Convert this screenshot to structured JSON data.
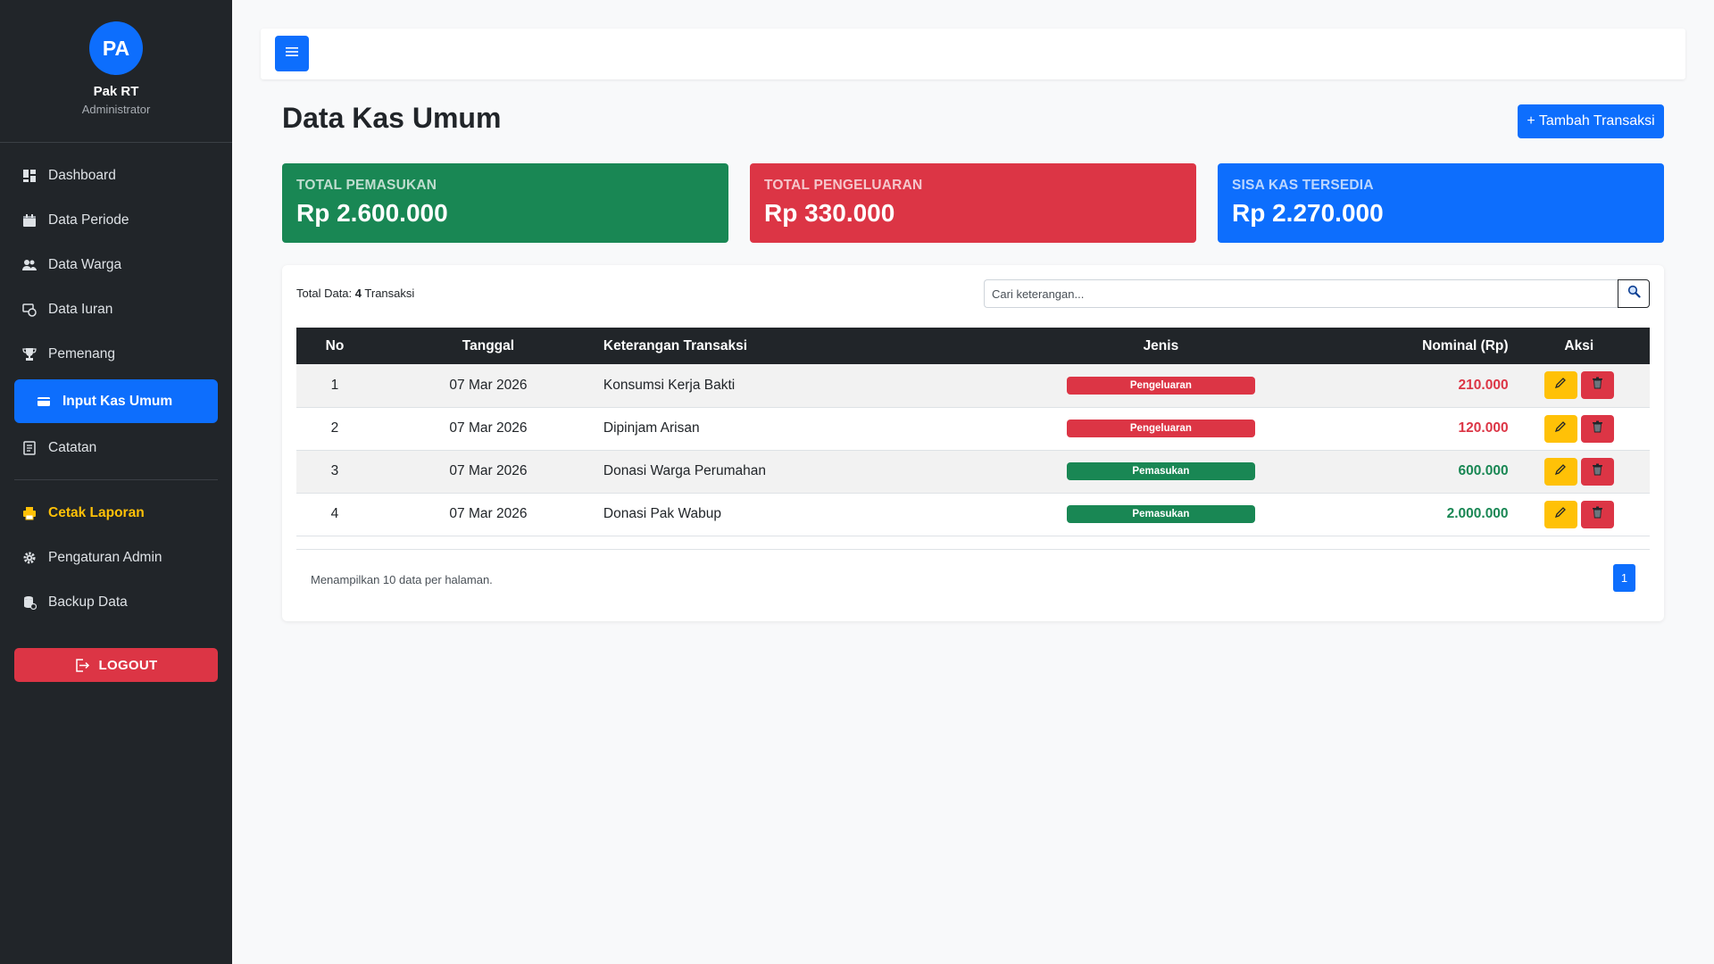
{
  "profile": {
    "initials": "PA",
    "name": "Pak RT",
    "role": "Administrator"
  },
  "nav": {
    "items": [
      {
        "label": "Dashboard",
        "icon": "dashboard-icon"
      },
      {
        "label": "Data Periode",
        "icon": "calendar-icon"
      },
      {
        "label": "Data Warga",
        "icon": "people-icon"
      },
      {
        "label": "Data Iuran",
        "icon": "cash-coin-icon"
      },
      {
        "label": "Pemenang",
        "icon": "trophy-icon"
      },
      {
        "label": "Input Kas Umum",
        "icon": "wallet-icon",
        "active": true
      },
      {
        "label": "Catatan",
        "icon": "notes-icon"
      }
    ],
    "secondary": [
      {
        "label": "Cetak Laporan",
        "icon": "printer-icon"
      },
      {
        "label": "Pengaturan Admin",
        "icon": "gear-icon"
      },
      {
        "label": "Backup Data",
        "icon": "database-icon"
      }
    ],
    "logout_label": "LOGOUT"
  },
  "header": {
    "title": "Data Kas Umum",
    "add_button": "+ Tambah Transaksi"
  },
  "stats": {
    "income": {
      "label": "TOTAL PEMASUKAN",
      "value": "Rp 2.600.000",
      "color": "#198754"
    },
    "expense": {
      "label": "TOTAL PENGELUARAN",
      "value": "Rp 330.000",
      "color": "#dc3545"
    },
    "balance": {
      "label": "SISA KAS TERSEDIA",
      "value": "Rp 2.270.000",
      "color": "#0d6efd"
    }
  },
  "table": {
    "total_prefix": "Total Data:",
    "total_count": "4",
    "total_suffix": "Transaksi",
    "search_placeholder": "Cari keterangan...",
    "columns": [
      "No",
      "Tanggal",
      "Keterangan Transaksi",
      "Jenis",
      "Nominal (Rp)",
      "Aksi"
    ],
    "rows": [
      {
        "no": "1",
        "date": "07 Mar 2026",
        "desc": "Konsumsi Kerja Bakti",
        "type": "Pengeluaran",
        "amount": "210.000"
      },
      {
        "no": "2",
        "date": "07 Mar 2026",
        "desc": "Dipinjam Arisan",
        "type": "Pengeluaran",
        "amount": "120.000"
      },
      {
        "no": "3",
        "date": "07 Mar 2026",
        "desc": "Donasi Warga Perumahan",
        "type": "Pemasukan",
        "amount": "600.000"
      },
      {
        "no": "4",
        "date": "07 Mar 2026",
        "desc": "Donasi Pak Wabup",
        "type": "Pemasukan",
        "amount": "2.000.000"
      }
    ],
    "footer_text": "Menampilkan 10 data per halaman.",
    "current_page": "1"
  }
}
